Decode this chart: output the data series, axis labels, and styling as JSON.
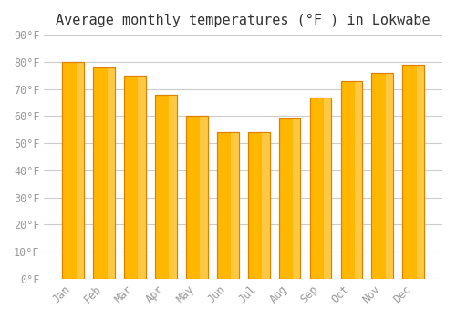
{
  "title": "Average monthly temperatures (°F ) in Lokwabe",
  "months": [
    "Jan",
    "Feb",
    "Mar",
    "Apr",
    "May",
    "Jun",
    "Jul",
    "Aug",
    "Sep",
    "Oct",
    "Nov",
    "Dec"
  ],
  "values": [
    80,
    78,
    75,
    68,
    60,
    54,
    54,
    59,
    67,
    73,
    76,
    79
  ],
  "bar_color_left": "#FFB700",
  "bar_color_right": "#FFA500",
  "bar_edge_color": "#E08000",
  "background_color": "#FFFFFF",
  "grid_color": "#CCCCCC",
  "ylim": [
    0,
    90
  ],
  "yticks": [
    0,
    10,
    20,
    30,
    40,
    50,
    60,
    70,
    80,
    90
  ],
  "ytick_labels": [
    "0°F",
    "10°F",
    "20°F",
    "30°F",
    "40°F",
    "50°F",
    "60°F",
    "70°F",
    "80°F",
    "90°F"
  ],
  "title_fontsize": 11,
  "tick_fontsize": 8.5,
  "font_color": "#999999",
  "title_color": "#333333"
}
